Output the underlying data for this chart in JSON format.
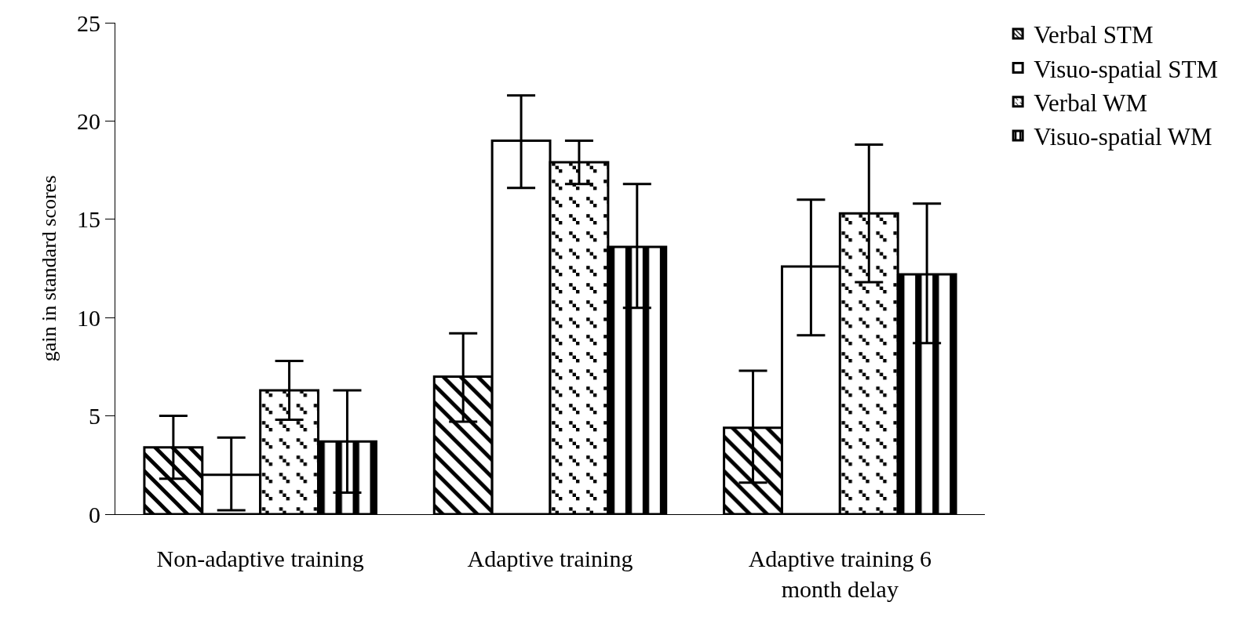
{
  "chart_data": {
    "type": "bar",
    "ylabel": "gain in standard scores",
    "categories": [
      "Non-adaptive training",
      "Adaptive training",
      "Adaptive training 6 month delay"
    ],
    "series": [
      {
        "name": "Verbal STM",
        "color": "#000000",
        "values": [
          3.4,
          7.0,
          4.4
        ],
        "errors": [
          [
            1.8,
            5.0
          ],
          [
            4.7,
            9.2
          ],
          [
            1.6,
            7.3
          ]
        ]
      },
      {
        "name": "Visuo-spatial STM",
        "color": "#000000",
        "values": [
          2.0,
          19.0,
          12.6
        ],
        "errors": [
          [
            0.2,
            3.9
          ],
          [
            16.6,
            21.3
          ],
          [
            9.1,
            16.0
          ]
        ]
      },
      {
        "name": "Verbal WM",
        "color": "#000000",
        "values": [
          6.3,
          17.9,
          15.3
        ],
        "errors": [
          [
            4.8,
            7.8
          ],
          [
            16.8,
            19.0
          ],
          [
            11.8,
            18.8
          ]
        ]
      },
      {
        "name": "Visuo-spatial WM",
        "color": "#000000",
        "values": [
          3.7,
          13.6,
          12.2
        ],
        "errors": [
          [
            1.1,
            6.3
          ],
          [
            10.5,
            16.8
          ],
          [
            8.7,
            15.8
          ]
        ]
      }
    ],
    "ylim": [
      0,
      25
    ],
    "yticks": [
      0,
      5,
      10,
      15,
      20,
      25
    ],
    "grid": false,
    "legend": "top right"
  }
}
